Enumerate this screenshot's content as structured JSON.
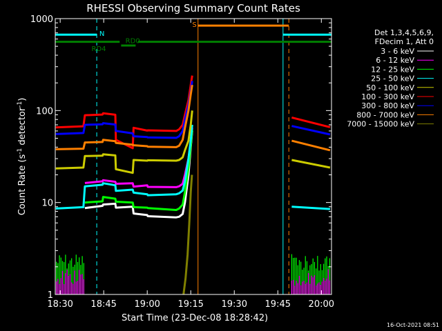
{
  "chart_data": {
    "type": "line",
    "title": "RHESSI Observing Summary Count Rates",
    "xlabel": "Start Time (23-Dec-08 18:28:42)",
    "ylabel_main": "Count Rate (s",
    "ylabel_sup1": "-1",
    "ylabel_mid": " detector",
    "ylabel_sup2": "-1",
    "ylabel_end": ")",
    "y_scale": "log",
    "ylim": [
      1,
      1000
    ],
    "xlim_minutes": [
      -1.7,
      93.5
    ],
    "x_ticks": [
      {
        "label": "18:30",
        "minutes": 0
      },
      {
        "label": "18:45",
        "minutes": 15
      },
      {
        "label": "19:00",
        "minutes": 30
      },
      {
        "label": "19:15",
        "minutes": 45
      },
      {
        "label": "19:30",
        "minutes": 60
      },
      {
        "label": "19:45",
        "minutes": 75
      },
      {
        "label": "20:00",
        "minutes": 90
      }
    ],
    "y_ticks": [
      {
        "label": "1",
        "value": 1
      },
      {
        "label": "10",
        "value": 10
      },
      {
        "label": "100",
        "value": 100
      },
      {
        "label": "1000",
        "value": 1000
      }
    ],
    "legend_header": [
      "Det 1,3,4,5,6,9,",
      "FDecim 1, Att 0"
    ],
    "series": [
      {
        "name": "3 - 6 keV",
        "color": "#ffffff",
        "x": [
          -1.5,
          8,
          8.5,
          14.6,
          14.8,
          19,
          19.2,
          25,
          25.3,
          30,
          30.2,
          40,
          41,
          42.2,
          43,
          44.2,
          45,
          45.5
        ],
        "y": [
          null,
          null,
          8.7,
          9.2,
          9.5,
          9.7,
          8.8,
          9.0,
          7.6,
          7.3,
          7.1,
          6.9,
          7.0,
          7.5,
          10,
          20,
          40,
          60
        ]
      },
      {
        "name": "6 - 12 keV",
        "color": "#ff00ff",
        "x": [
          8.5,
          14.6,
          14.8,
          19,
          19.2,
          25,
          25.3,
          30,
          30.2,
          40,
          41,
          42.2,
          43,
          44.2,
          45,
          45.5
        ],
        "y": [
          16.3,
          17,
          17.5,
          16.8,
          16,
          16.2,
          14.9,
          15.4,
          14.8,
          14.7,
          15,
          16,
          20,
          30,
          45,
          65
        ]
      },
      {
        "name": "12 - 25 keV",
        "color": "#00ff00",
        "x": [
          8.5,
          14.6,
          14.8,
          19,
          19.2,
          25,
          25.3,
          30,
          30.2,
          40,
          41,
          42.2,
          43,
          44.2,
          45,
          45.5
        ],
        "y": [
          10.0,
          10.3,
          11.5,
          11.0,
          10.2,
          10.0,
          8.9,
          8.8,
          8.7,
          8.3,
          8.6,
          9.5,
          13,
          24,
          42,
          62
        ]
      },
      {
        "name": "25 - 50 keV",
        "color": "#00ffff",
        "x": [
          -1.5,
          8,
          8.5,
          14.6,
          14.8,
          19,
          19.2,
          25,
          25.3,
          30,
          30.2,
          40,
          41,
          42.2,
          43,
          44.2,
          45,
          45.5
        ],
        "y": [
          8.6,
          8.9,
          15.0,
          15.6,
          16.2,
          15.4,
          13.4,
          13.8,
          12.8,
          12.3,
          12.0,
          12.3,
          12.6,
          13.5,
          17,
          30,
          48,
          70
        ]
      },
      {
        "name": "50 - 100 keV",
        "color": "#cccc00",
        "x": [
          -1.5,
          8,
          8.5,
          14.6,
          14.8,
          19,
          19.2,
          25,
          25.3,
          30,
          30.2,
          40,
          41,
          42.2,
          43,
          44.2,
          45,
          45.5
        ],
        "y": [
          23.5,
          24.0,
          32.0,
          32.3,
          33.5,
          32.5,
          23.0,
          21.0,
          29.0,
          28.5,
          28.8,
          28.5,
          29.0,
          31.0,
          37,
          47,
          70,
          100
        ]
      },
      {
        "name": "100 - 300 keV",
        "color": "#ff0000",
        "x": [
          -1.5,
          8,
          8.5,
          14.6,
          14.8,
          19,
          19.2,
          25,
          25.3,
          30,
          30.2,
          40,
          41,
          42.2,
          43,
          44.2,
          45,
          45.5
        ],
        "y": [
          65.5,
          67.5,
          89.0,
          90.5,
          93.5,
          90.0,
          48.0,
          39.0,
          65.0,
          60.5,
          61.0,
          60.0,
          62.5,
          70.0,
          90,
          130,
          190,
          240
        ]
      },
      {
        "name": "300 - 800 keV",
        "color": "#0000ff",
        "x": [
          -1.5,
          8,
          8.5,
          14.6,
          14.8,
          19,
          19.2,
          25,
          25.3,
          30,
          30.2,
          40,
          41,
          42.2,
          43,
          44.2,
          45,
          45.5
        ],
        "y": [
          55.5,
          57.0,
          70.0,
          71.0,
          73.0,
          70.5,
          60.0,
          56.5,
          52.5,
          51.5,
          51.0,
          50.5,
          52.5,
          60.0,
          80,
          115,
          160,
          210
        ]
      },
      {
        "name": "800 - 7000 keV",
        "color": "#ff8000",
        "x": [
          -1.5,
          8,
          8.5,
          14.6,
          14.8,
          19,
          19.2,
          25,
          25.3,
          30,
          30.2,
          40,
          41,
          42.2,
          43,
          44.2,
          45,
          45.5
        ],
        "y": [
          38.0,
          38.5,
          45.0,
          45.5,
          48.0,
          46.5,
          44.5,
          42.5,
          42.0,
          41.0,
          40.5,
          40.0,
          41.5,
          48.0,
          65,
          100,
          150,
          190
        ]
      },
      {
        "name": "7000 - 15000 keV",
        "color": "#808000",
        "x": [
          42.5,
          43.2,
          43.9,
          44.5,
          45.0,
          45.4
        ],
        "y": [
          1.0,
          1.5,
          2.7,
          6.0,
          13.0,
          20.0
        ]
      }
    ],
    "after_gap_series": [
      {
        "color": "#ff0000",
        "x": [
          79.8,
          93
        ],
        "y": [
          84,
          66
        ]
      },
      {
        "color": "#0000ff",
        "x": [
          79.8,
          93
        ],
        "y": [
          68,
          55
        ]
      },
      {
        "color": "#ff8000",
        "x": [
          79.8,
          93
        ],
        "y": [
          47,
          37
        ]
      },
      {
        "color": "#cccc00",
        "x": [
          79.8,
          93
        ],
        "y": [
          29,
          24
        ]
      },
      {
        "color": "#00ffff",
        "x": [
          79.8,
          93
        ],
        "y": [
          9.0,
          8.5
        ]
      }
    ],
    "state_bars": [
      {
        "label": "N",
        "color": "#00ffff",
        "x0": -1.7,
        "x1": 12.6,
        "y": 670
      },
      {
        "label": "N",
        "color": "#00ffff",
        "x0": 76.8,
        "x1": 93.5,
        "y": 670
      },
      {
        "label": "S",
        "color": "#ff8000",
        "x0": 47.5,
        "x1": 78.8,
        "y": 840
      },
      {
        "label": "RD0",
        "color": "#008000",
        "x0": 26.8,
        "x1": 93.5,
        "y": 560
      },
      {
        "label": "RD4",
        "color": "#008000",
        "x0": 21.0,
        "x1": 26.0,
        "y": 510
      },
      {
        "label": "",
        "color": "#008000",
        "x0": -1.7,
        "x1": 20.5,
        "y": 560
      }
    ],
    "markers": [
      {
        "color": "#00ffff",
        "minutes": -1.7,
        "style": "solid"
      },
      {
        "color": "#00ffff",
        "minutes": 12.6,
        "style": "dash"
      },
      {
        "color": "#ff8000",
        "minutes": 47.5,
        "style": "solid"
      },
      {
        "color": "#00ffff",
        "minutes": 76.8,
        "style": "solid"
      },
      {
        "color": "#ff8000",
        "minutes": 78.8,
        "style": "dash"
      },
      {
        "color": "#00ffff",
        "minutes": 93.5,
        "style": "dash"
      }
    ],
    "bar_labels": {
      "n": "N",
      "s": "S",
      "rd0": "RD0",
      "rd4": "RD4"
    }
  },
  "timestamp": "16-Oct-2021 08:51"
}
